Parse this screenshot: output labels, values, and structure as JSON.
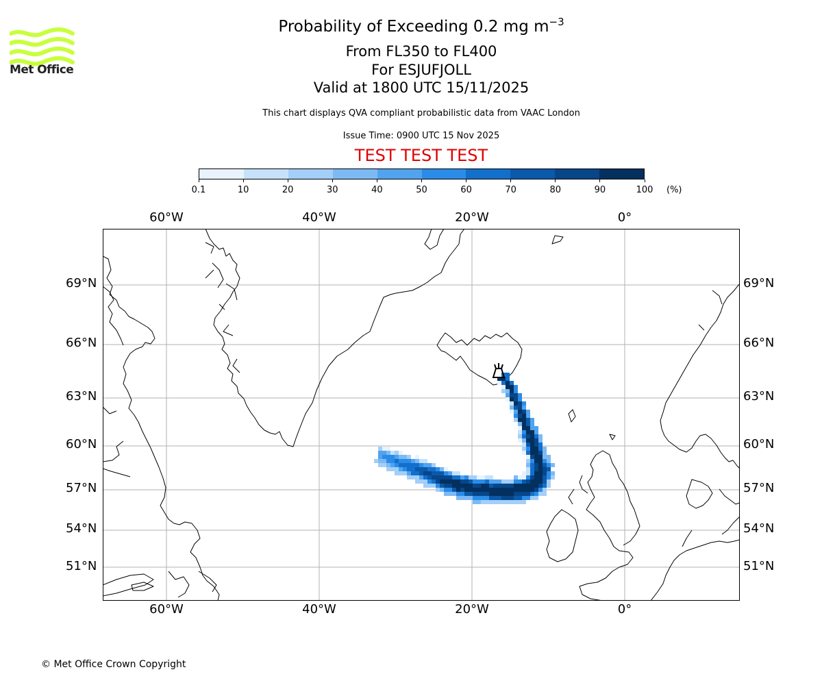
{
  "branding": {
    "logo_text": "Met Office",
    "logo_color": "#c8ff3c"
  },
  "title": {
    "main_prefix": "Probability of Exceeding 0.2 mg m",
    "main_exponent": "−3",
    "flight_levels": "From FL350 to FL400",
    "volcano": "For ESJUFJOLL",
    "valid": "Valid at 1800 UTC 15/11/2025"
  },
  "disclaimer": "This chart displays QVA compliant probabilistic data from VAAC London",
  "issue_time": "Issue Time: 0900 UTC 15 Nov 2025",
  "test_banner": "TEST TEST TEST",
  "test_banner_color": "#e00000",
  "colorbar": {
    "ticks": [
      "0.1",
      "10",
      "20",
      "30",
      "40",
      "50",
      "60",
      "70",
      "80",
      "90",
      "100"
    ],
    "unit": "(%)",
    "colors": [
      "#e8f3fd",
      "#c6e2fb",
      "#a3cff8",
      "#7dbaf4",
      "#52a3ef",
      "#2a8ce8",
      "#136fcc",
      "#0a59ab",
      "#064689",
      "#03305f"
    ]
  },
  "map": {
    "lon_ticks": [
      "60°W",
      "40°W",
      "20°W",
      "0°"
    ],
    "lat_ticks": [
      "69°N",
      "66°N",
      "63°N",
      "60°N",
      "57°N",
      "54°N",
      "51°N"
    ],
    "volcano_name": "ESJUFJOLL"
  },
  "copyright": "© Met Office Crown Copyright"
}
